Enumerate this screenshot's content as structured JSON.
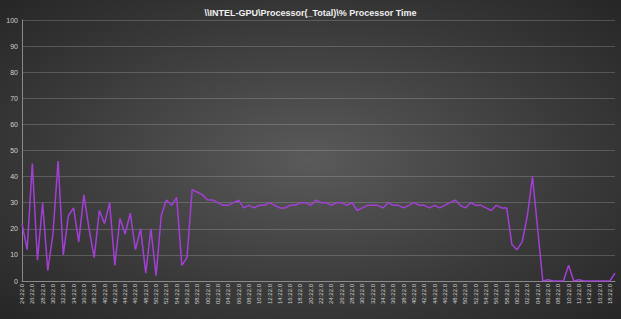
{
  "chart_data": {
    "type": "line",
    "title": "\\\\INTEL-GPU\\Processor(_Total)\\% Processor Time",
    "categories": [
      "24:22.0",
      null,
      "26:22.0",
      null,
      "28:22.0",
      null,
      "30:22.0",
      null,
      "32:22.0",
      null,
      "34:22.0",
      null,
      "36:22.0",
      null,
      "38:22.0",
      null,
      "40:22.0",
      null,
      "42:22.0",
      null,
      "44:22.0",
      null,
      "46:22.0",
      null,
      "48:22.0",
      null,
      "50:22.0",
      null,
      "52:22.0",
      null,
      "54:22.0",
      null,
      "56:22.0",
      null,
      "58:22.0",
      null,
      "00:22.0",
      null,
      "02:22.0",
      null,
      "04:22.0",
      null,
      "06:22.0",
      null,
      "08:22.0",
      null,
      "10:22.0",
      null,
      "12:22.0",
      null,
      "14:22.0",
      null,
      "16:22.0",
      null,
      "18:22.0",
      null,
      "20:22.0",
      null,
      "22:22.0",
      null,
      "24:22.0",
      null,
      "26:22.0",
      null,
      "28:22.0",
      null,
      "30:22.0",
      null,
      "32:22.0",
      null,
      "34:22.0",
      null,
      "36:22.0",
      null,
      "38:22.0",
      null,
      "40:22.0",
      null,
      "42:22.0",
      null,
      "44:22.0",
      null,
      "46:22.0",
      null,
      "48:22.0",
      null,
      "50:22.0",
      null,
      "52:22.0",
      null,
      "54:22.0",
      null,
      "56:22.0",
      null,
      "58:22.0",
      null,
      "00:22.0",
      null,
      "02:22.0",
      null,
      "04:22.0",
      null,
      "06:22.0",
      null,
      "08:22.0",
      null,
      "10:22.0",
      null,
      "12:22.0",
      null,
      "14:22.0",
      null,
      "16:22.0",
      null,
      "18:22.0",
      null
    ],
    "values": [
      22,
      12,
      45,
      8,
      30,
      4,
      18,
      46,
      10,
      25,
      28,
      15,
      33,
      20,
      9,
      27,
      22,
      30,
      6,
      24,
      18,
      26,
      12,
      20,
      3,
      20,
      2,
      25,
      31,
      29,
      32,
      6,
      9,
      35,
      34,
      33,
      31,
      31,
      30,
      29,
      29,
      30,
      31,
      28,
      29,
      28,
      29,
      29,
      30,
      29,
      28,
      28,
      29,
      29,
      30,
      30,
      29,
      31,
      30,
      30,
      29,
      30,
      30,
      29,
      30,
      27,
      28,
      29,
      29,
      29,
      28,
      30,
      29,
      29,
      28,
      29,
      30,
      29,
      29,
      28,
      29,
      28,
      29,
      30,
      31,
      29,
      28,
      30,
      29,
      29,
      28,
      27,
      29,
      28,
      28,
      14,
      12,
      15,
      25,
      40,
      20,
      0,
      0.5,
      0,
      0,
      0,
      6,
      0,
      0.5,
      0,
      0,
      0,
      0,
      0,
      0,
      3
    ],
    "color": "#a23fd6",
    "ylim": [
      0,
      100
    ],
    "yticks": [
      0,
      10,
      20,
      30,
      40,
      50,
      60,
      70,
      80,
      90,
      100
    ],
    "grid": true
  }
}
